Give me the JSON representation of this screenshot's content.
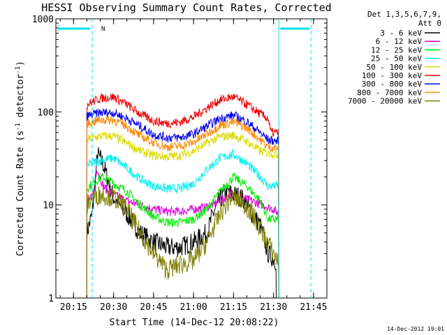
{
  "chart_data": {
    "type": "line",
    "title": "HESSI Observing Summary Count Rates, Corrected",
    "xlabel": "Start Time (14-Dec-12 20:08:22)",
    "ylabel_prefix": "Corrected Count Rate (s",
    "ylabel_sup1": "-1",
    "ylabel_mid": " detector",
    "ylabel_sup2": "-1",
    "ylabel_suffix": ")",
    "yscale": "log",
    "ylim": [
      1,
      1000
    ],
    "xlim": [
      "20:08:22",
      "21:50:00"
    ],
    "x_ticks": [
      "20:15",
      "20:30",
      "20:45",
      "21:00",
      "21:15",
      "21:30",
      "21:45"
    ],
    "y_ticks": [
      "1",
      "10",
      "100",
      "1000"
    ],
    "legend_header_1": "Det 1,3,5,6,7,9,",
    "legend_header_2": "Att 0",
    "legend_placement": "right, outside plot",
    "timestamp": "14-Dec-2012 19:01",
    "annotation_label": "N",
    "series": [
      {
        "name": "3 - 6 keV",
        "color": "#000000",
        "x": [
          "20:20",
          "20:22",
          "20:24",
          "20:26",
          "20:28",
          "20:30",
          "20:35",
          "20:40",
          "20:45",
          "20:50",
          "20:55",
          "21:00",
          "21:05",
          "21:08",
          "21:12",
          "21:15",
          "21:18",
          "21:22",
          "21:25",
          "21:28",
          "21:31"
        ],
        "y": [
          5,
          8,
          35,
          28,
          18,
          12,
          8,
          5,
          4,
          3.5,
          3.5,
          4,
          5,
          9,
          14,
          13,
          12,
          8,
          6,
          3,
          2.5
        ]
      },
      {
        "name": "6 - 12 keV",
        "color": "#dd00dd",
        "x": [
          "20:20",
          "20:22",
          "20:24",
          "20:26",
          "20:28",
          "20:30",
          "20:35",
          "20:40",
          "20:45",
          "20:50",
          "20:55",
          "21:00",
          "21:05",
          "21:10",
          "21:14",
          "21:18",
          "21:22",
          "21:26",
          "21:30",
          "21:32"
        ],
        "y": [
          11,
          12,
          25,
          16,
          14,
          13,
          11,
          10,
          9,
          8.5,
          8.5,
          9,
          9.5,
          11,
          13,
          12,
          11,
          10,
          9,
          8
        ]
      },
      {
        "name": "12 - 25 keV",
        "color": "#00ee00",
        "x": [
          "20:20",
          "20:23",
          "20:26",
          "20:30",
          "20:35",
          "20:40",
          "20:45",
          "20:50",
          "20:55",
          "21:00",
          "21:05",
          "21:10",
          "21:15",
          "21:20",
          "21:25",
          "21:28",
          "21:32"
        ],
        "y": [
          15,
          18,
          20,
          17,
          14,
          10,
          7.5,
          6.5,
          6.5,
          7,
          9,
          14,
          20,
          16,
          11,
          7,
          7
        ]
      },
      {
        "name": "25 - 50 keV",
        "color": "#00eeee",
        "x": [
          "20:20",
          "20:25",
          "20:30",
          "20:35",
          "20:40",
          "20:45",
          "20:50",
          "20:55",
          "21:00",
          "21:05",
          "21:10",
          "21:15",
          "21:20",
          "21:25",
          "21:28",
          "21:32"
        ],
        "y": [
          27,
          30,
          32,
          25,
          19,
          16,
          15,
          15,
          17,
          24,
          32,
          35,
          28,
          20,
          16,
          16
        ]
      },
      {
        "name": "50 - 100 keV",
        "color": "#dddd00",
        "x": [
          "20:20",
          "20:25",
          "20:30",
          "20:35",
          "20:40",
          "20:45",
          "20:50",
          "20:55",
          "21:00",
          "21:05",
          "21:10",
          "21:15",
          "21:20",
          "21:25",
          "21:28",
          "21:32"
        ],
        "y": [
          50,
          55,
          55,
          46,
          38,
          34,
          33,
          34,
          38,
          46,
          54,
          56,
          48,
          38,
          36,
          35
        ]
      },
      {
        "name": "100 - 300 keV",
        "color": "#ee0000",
        "x": [
          "20:20",
          "20:25",
          "20:30",
          "20:35",
          "20:40",
          "20:45",
          "20:50",
          "20:55",
          "21:00",
          "21:05",
          "21:10",
          "21:15",
          "21:20",
          "21:25",
          "21:28",
          "21:29",
          "21:32"
        ],
        "y": [
          120,
          140,
          145,
          120,
          95,
          80,
          75,
          78,
          88,
          110,
          135,
          145,
          120,
          95,
          85,
          60,
          60
        ]
      },
      {
        "name": "300 - 800 keV",
        "color": "#0000ee",
        "x": [
          "20:20",
          "20:25",
          "20:30",
          "20:35",
          "20:40",
          "20:45",
          "20:50",
          "20:55",
          "21:00",
          "21:05",
          "21:10",
          "21:15",
          "21:20",
          "21:25",
          "21:28",
          "21:32"
        ],
        "y": [
          90,
          98,
          98,
          85,
          70,
          57,
          53,
          53,
          58,
          70,
          85,
          92,
          78,
          60,
          50,
          48
        ]
      },
      {
        "name": "800 - 7000 keV",
        "color": "#ff8800",
        "x": [
          "20:20",
          "20:25",
          "20:30",
          "20:35",
          "20:40",
          "20:45",
          "20:50",
          "20:55",
          "21:00",
          "21:05",
          "21:10",
          "21:15",
          "21:20",
          "21:25",
          "21:28",
          "21:32"
        ],
        "y": [
          75,
          82,
          82,
          70,
          55,
          47,
          42,
          43,
          47,
          58,
          72,
          78,
          67,
          50,
          42,
          41
        ]
      },
      {
        "name": "7000 - 20000 keV",
        "color": "#808000",
        "x": [
          "20:20",
          "20:22",
          "20:25",
          "20:30",
          "20:35",
          "20:40",
          "20:45",
          "20:50",
          "20:55",
          "21:00",
          "21:05",
          "21:10",
          "21:14",
          "21:18",
          "21:22",
          "21:26",
          "21:30",
          "21:32"
        ],
        "y": [
          10,
          12,
          13,
          12,
          9,
          5,
          3,
          2,
          2.3,
          2.5,
          4,
          8,
          12,
          11,
          8,
          5,
          3,
          2.5
        ]
      }
    ],
    "overlay_color": "#00e0ee"
  }
}
